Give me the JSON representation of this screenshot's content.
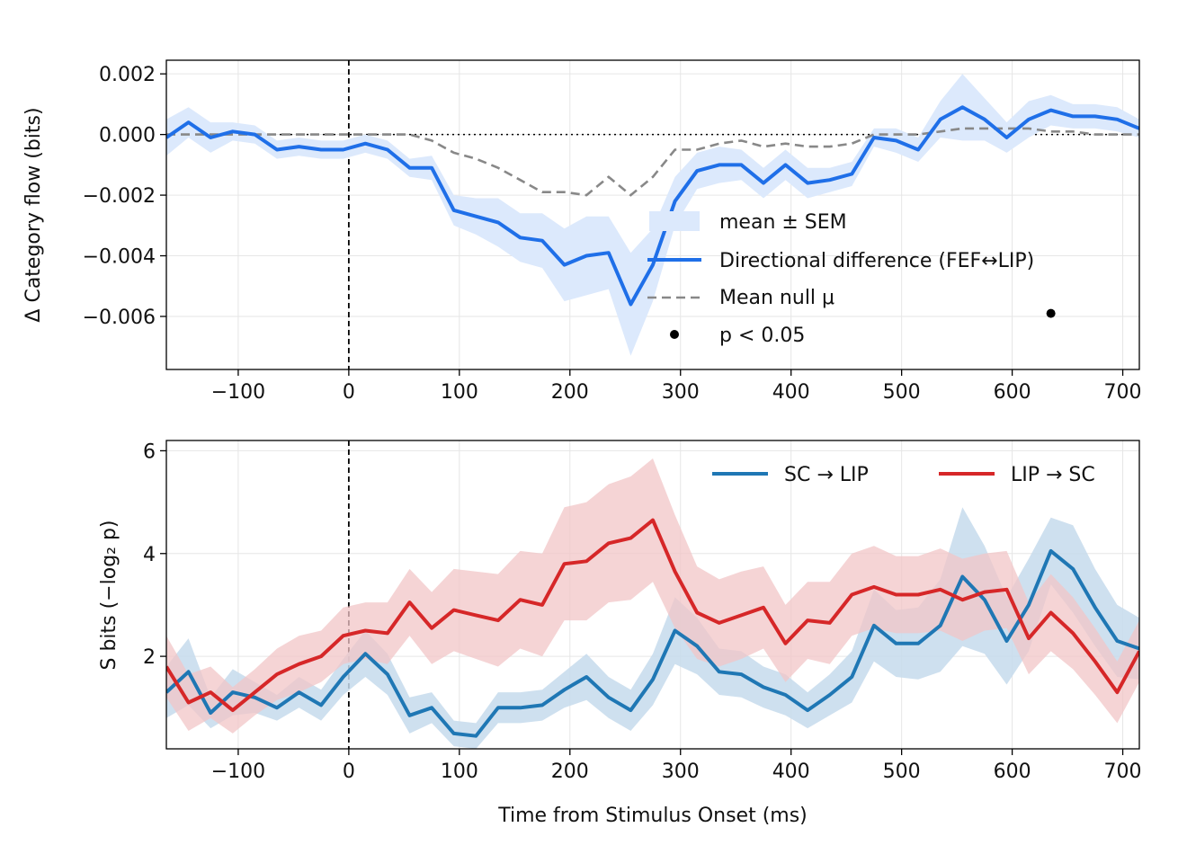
{
  "chart_data": [
    {
      "type": "line",
      "panel": "top",
      "title": "",
      "xlabel": "",
      "ylabel": "Δ Category flow (bits)",
      "xlim": [
        -165,
        715
      ],
      "ylim": [
        -0.00775,
        0.00245
      ],
      "x_ticks": [
        -100,
        0,
        100,
        200,
        300,
        400,
        500,
        600,
        700
      ],
      "x_tick_labels": [
        "−100",
        "0",
        "100",
        "200",
        "300",
        "400",
        "500",
        "600",
        "700"
      ],
      "y_ticks": [
        -0.006,
        -0.004,
        -0.002,
        0.0,
        0.002
      ],
      "y_tick_labels": [
        "−0.006",
        "−0.004",
        "−0.002",
        "0.000",
        "0.002"
      ],
      "grid": true,
      "vline_x": 0,
      "hline_y": 0,
      "legend": {
        "position": "lower-right",
        "entries": [
          "mean ± SEM",
          "Directional difference (FEF↔LIP)",
          "Mean null μ",
          "p < 0.05"
        ]
      },
      "colors": {
        "diff": "#1f6fe8",
        "sem_fill": "#dce9fc",
        "null": "#888888",
        "sig": "#000000"
      },
      "x": [
        -165,
        -145,
        -125,
        -105,
        -85,
        -65,
        -45,
        -25,
        -5,
        15,
        35,
        55,
        75,
        95,
        115,
        135,
        155,
        175,
        195,
        215,
        235,
        255,
        275,
        295,
        315,
        335,
        355,
        375,
        395,
        415,
        435,
        455,
        475,
        495,
        515,
        535,
        555,
        575,
        595,
        615,
        635,
        655,
        675,
        695,
        715
      ],
      "series": [
        {
          "name": "Directional difference (FEF↔LIP)",
          "values": [
            -0.0001,
            0.0004,
            -0.0001,
            0.0001,
            0.0,
            -0.0005,
            -0.0004,
            -0.0005,
            -0.0005,
            -0.0003,
            -0.0005,
            -0.0011,
            -0.0011,
            -0.0025,
            -0.0027,
            -0.0029,
            -0.0034,
            -0.0035,
            -0.0043,
            -0.004,
            -0.0039,
            -0.0056,
            -0.0043,
            -0.0022,
            -0.0012,
            -0.001,
            -0.001,
            -0.0016,
            -0.001,
            -0.0016,
            -0.0015,
            -0.0013,
            -0.0001,
            -0.0002,
            -0.0005,
            0.0005,
            0.0009,
            0.0005,
            -0.0001,
            0.0005,
            0.0008,
            0.0006,
            0.0006,
            0.0005,
            0.0002
          ],
          "sem": [
            0.0006,
            0.0005,
            0.0005,
            0.0003,
            0.0003,
            0.0003,
            0.0003,
            0.0003,
            0.0003,
            0.0003,
            0.0003,
            0.0003,
            0.0004,
            0.0005,
            0.0006,
            0.0008,
            0.0008,
            0.0009,
            0.0012,
            0.0013,
            0.0012,
            0.0017,
            0.0012,
            0.0008,
            0.0006,
            0.0006,
            0.0005,
            0.0005,
            0.0005,
            0.0005,
            0.0004,
            0.0004,
            0.0003,
            0.0004,
            0.0004,
            0.0006,
            0.0011,
            0.0007,
            0.0005,
            0.0006,
            0.0005,
            0.0004,
            0.0004,
            0.0004,
            0.0003
          ]
        },
        {
          "name": "Mean null μ",
          "values": [
            0.0,
            0.0,
            0.0,
            0.0,
            0.0,
            0.0,
            0.0,
            0.0,
            0.0,
            0.0,
            0.0,
            0.0,
            -0.0002,
            -0.0006,
            -0.0008,
            -0.0011,
            -0.0015,
            -0.0019,
            -0.0019,
            -0.002,
            -0.0014,
            -0.002,
            -0.0014,
            -0.0005,
            -0.0005,
            -0.0003,
            -0.0002,
            -0.0004,
            -0.0003,
            -0.0004,
            -0.0004,
            -0.0003,
            0.0,
            0.0,
            0.0,
            0.0001,
            0.0002,
            0.0002,
            0.0002,
            0.0002,
            0.0001,
            0.0001,
            0.0,
            0.0,
            0.0
          ]
        }
      ],
      "significant_points": [
        {
          "x": 635,
          "y": -0.0059
        }
      ]
    },
    {
      "type": "line",
      "panel": "bottom",
      "title": "",
      "xlabel": "Time from Stimulus Onset (ms)",
      "ylabel": "S bits (−log₂ p)",
      "xlim": [
        -165,
        715
      ],
      "ylim": [
        0.2,
        6.2
      ],
      "x_ticks": [
        -100,
        0,
        100,
        200,
        300,
        400,
        500,
        600,
        700
      ],
      "x_tick_labels": [
        "−100",
        "0",
        "100",
        "200",
        "300",
        "400",
        "500",
        "600",
        "700"
      ],
      "y_ticks": [
        2,
        4,
        6
      ],
      "y_tick_labels": [
        "2",
        "4",
        "6"
      ],
      "grid": true,
      "vline_x": 0,
      "legend": {
        "position": "top-right",
        "entries": [
          "SC → LIP",
          "LIP → SC"
        ]
      },
      "colors": {
        "sc_lip": "#1f77b4",
        "lip_sc": "#d62728",
        "sc_lip_fill": "#c6dbec",
        "lip_sc_fill": "#f2c5c7"
      },
      "x": [
        -165,
        -145,
        -125,
        -105,
        -85,
        -65,
        -45,
        -25,
        -5,
        15,
        35,
        55,
        75,
        95,
        115,
        135,
        155,
        175,
        195,
        215,
        235,
        255,
        275,
        295,
        315,
        335,
        355,
        375,
        395,
        415,
        435,
        455,
        475,
        495,
        515,
        535,
        555,
        575,
        595,
        615,
        635,
        655,
        675,
        695,
        715
      ],
      "series": [
        {
          "name": "SC → LIP",
          "values": [
            1.3,
            1.7,
            0.9,
            1.3,
            1.2,
            1.0,
            1.3,
            1.05,
            1.6,
            2.05,
            1.65,
            0.85,
            1.0,
            0.5,
            0.45,
            1.0,
            1.0,
            1.05,
            1.35,
            1.6,
            1.2,
            0.95,
            1.55,
            2.5,
            2.2,
            1.7,
            1.65,
            1.4,
            1.25,
            0.95,
            1.25,
            1.6,
            2.6,
            2.25,
            2.25,
            2.6,
            3.55,
            3.1,
            2.3,
            3.0,
            4.05,
            3.7,
            2.95,
            2.3,
            2.15
          ],
          "sem": [
            0.5,
            0.65,
            0.3,
            0.45,
            0.3,
            0.25,
            0.3,
            0.3,
            0.35,
            0.45,
            0.4,
            0.35,
            0.3,
            0.25,
            0.25,
            0.3,
            0.3,
            0.3,
            0.35,
            0.45,
            0.4,
            0.4,
            0.5,
            0.65,
            0.55,
            0.45,
            0.45,
            0.4,
            0.4,
            0.35,
            0.4,
            0.5,
            0.7,
            0.65,
            0.7,
            0.9,
            1.35,
            1.05,
            0.85,
            0.9,
            0.65,
            0.85,
            0.75,
            0.7,
            0.6
          ]
        },
        {
          "name": "LIP → SC",
          "values": [
            1.8,
            1.1,
            1.3,
            0.95,
            1.3,
            1.65,
            1.85,
            2.0,
            2.4,
            2.5,
            2.45,
            3.05,
            2.55,
            2.9,
            2.8,
            2.7,
            3.1,
            3.0,
            3.8,
            3.85,
            4.2,
            4.3,
            4.65,
            3.65,
            2.85,
            2.65,
            2.8,
            2.95,
            2.25,
            2.7,
            2.65,
            3.2,
            3.35,
            3.2,
            3.2,
            3.3,
            3.1,
            3.25,
            3.3,
            2.35,
            2.85,
            2.45,
            1.9,
            1.3,
            2.1
          ],
          "sem": [
            0.6,
            0.55,
            0.5,
            0.45,
            0.45,
            0.5,
            0.55,
            0.5,
            0.55,
            0.55,
            0.6,
            0.65,
            0.7,
            0.8,
            0.85,
            0.9,
            0.95,
            1.0,
            1.1,
            1.15,
            1.15,
            1.2,
            1.2,
            1.1,
            0.9,
            0.85,
            0.85,
            0.8,
            0.75,
            0.75,
            0.8,
            0.8,
            0.8,
            0.75,
            0.75,
            0.8,
            0.8,
            0.75,
            0.75,
            0.7,
            0.75,
            0.7,
            0.65,
            0.6,
            0.6
          ]
        }
      ]
    }
  ]
}
